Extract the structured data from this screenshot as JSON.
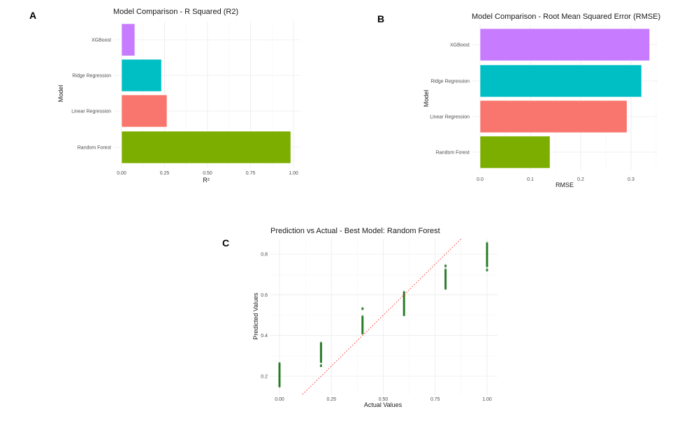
{
  "chart_data": [
    {
      "panel_label": "A",
      "type": "bar",
      "orientation": "horizontal",
      "title": "Model Comparison - R Squared (R2)",
      "xlabel": "R²",
      "ylabel": "Model",
      "categories": [
        "Random Forest",
        "Linear Regression",
        "Ridge Regression",
        "XGBoost"
      ],
      "values": [
        0.984,
        0.264,
        0.232,
        0.077
      ],
      "colors": [
        "#7CAE00",
        "#F8766D",
        "#00BFC4",
        "#C77CFF"
      ],
      "xticks": [
        "0.00",
        "0.25",
        "0.50",
        "0.75",
        "1.00"
      ],
      "xlim": [
        0,
        1.04
      ],
      "grid": true
    },
    {
      "panel_label": "B",
      "type": "bar",
      "orientation": "horizontal",
      "title": "Model Comparison - Root Mean Squared Error (RMSE)",
      "xlabel": "RMSE",
      "ylabel": "Model",
      "categories": [
        "Random Forest",
        "Linear Regression",
        "Ridge Regression",
        "XGBoost"
      ],
      "values": [
        0.139,
        0.292,
        0.321,
        0.337
      ],
      "colors": [
        "#7CAE00",
        "#F8766D",
        "#00BFC4",
        "#C77CFF"
      ],
      "xticks": [
        "0.0",
        "0.1",
        "0.2",
        "0.3"
      ],
      "xlim": [
        0,
        0.35
      ],
      "grid": true
    },
    {
      "panel_label": "C",
      "type": "scatter",
      "title": "Prediction vs Actual - Best Model: Random Forest",
      "xlabel": "Actual Values",
      "ylabel": "Predicted Values",
      "xticks": [
        "0.00",
        "0.25",
        "0.50",
        "0.75",
        "1.00"
      ],
      "yticks": [
        "0.2",
        "0.4",
        "0.6",
        "0.8"
      ],
      "xlim": [
        -0.05,
        1.05
      ],
      "ylim": [
        0.11,
        0.875
      ],
      "point_color": "#006400",
      "reference_line": {
        "type": "y = x",
        "style": "dashed",
        "color": "#FF0000"
      },
      "grid": true,
      "points": [
        {
          "x": 0.0,
          "y": [
            0.15,
            0.16,
            0.17,
            0.18,
            0.19,
            0.2,
            0.21,
            0.22,
            0.23,
            0.24,
            0.25,
            0.26
          ]
        },
        {
          "x": 0.2,
          "y": [
            0.25,
            0.27,
            0.28,
            0.29,
            0.3,
            0.31,
            0.32,
            0.33,
            0.34,
            0.35,
            0.36
          ]
        },
        {
          "x": 0.4,
          "y": [
            0.41,
            0.42,
            0.43,
            0.44,
            0.45,
            0.46,
            0.47,
            0.48,
            0.49,
            0.53
          ]
        },
        {
          "x": 0.6,
          "y": [
            0.5,
            0.51,
            0.52,
            0.53,
            0.54,
            0.55,
            0.56,
            0.57,
            0.58,
            0.59,
            0.6,
            0.61
          ]
        },
        {
          "x": 0.8,
          "y": [
            0.63,
            0.64,
            0.65,
            0.66,
            0.67,
            0.68,
            0.69,
            0.7,
            0.71,
            0.72,
            0.74
          ]
        },
        {
          "x": 1.0,
          "y": [
            0.72,
            0.74,
            0.75,
            0.76,
            0.77,
            0.78,
            0.79,
            0.8,
            0.81,
            0.82,
            0.83,
            0.84,
            0.85
          ]
        }
      ]
    }
  ]
}
